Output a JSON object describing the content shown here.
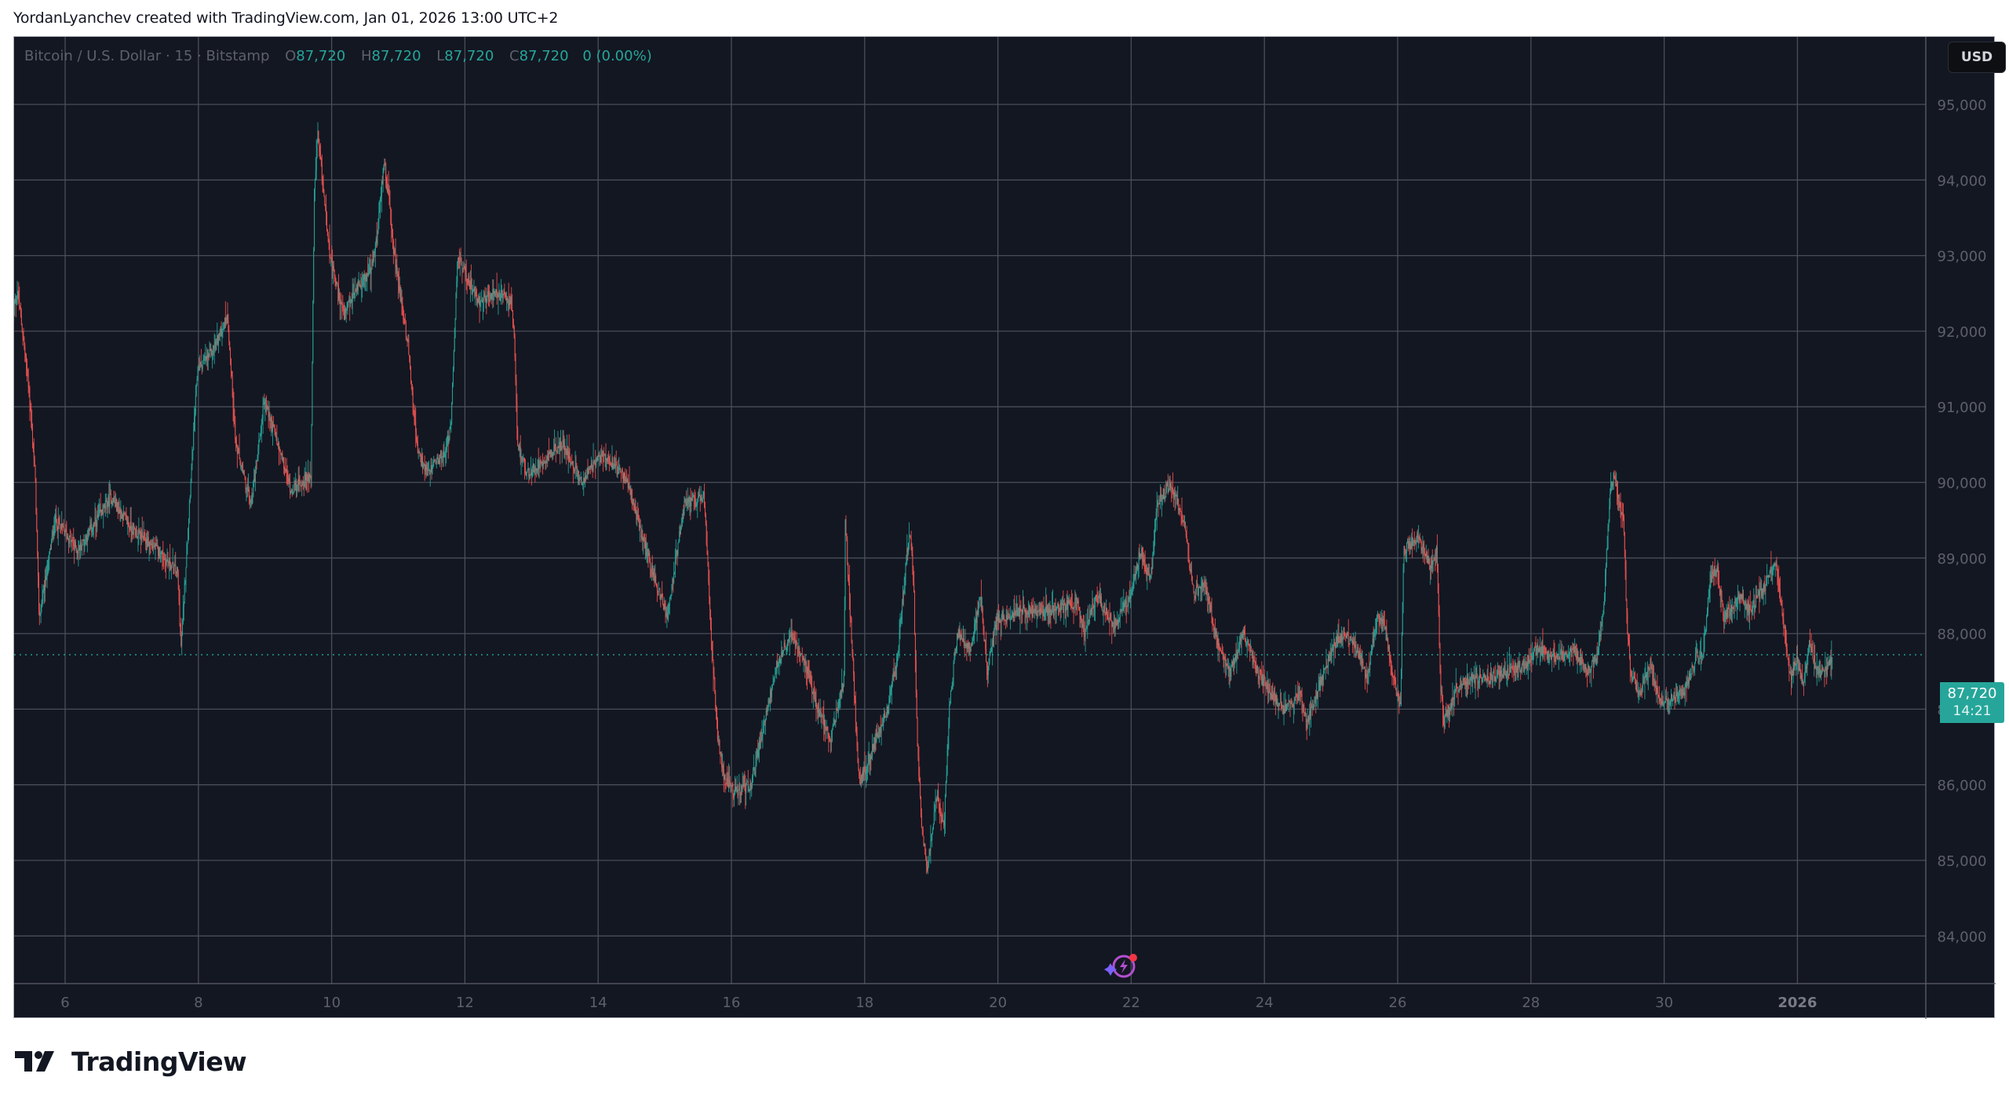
{
  "attribution": "YordanLyanchev created with TradingView.com, Jan 01, 2026 13:00 UTC+2",
  "legend": {
    "symbol_text": "Bitcoin / U.S. Dollar · 15 · Bitstamp",
    "open_label": "O",
    "open_value": "87,720",
    "high_label": "H",
    "high_value": "87,720",
    "low_label": "L",
    "low_value": "87,720",
    "close_label": "C",
    "close_value": "87,720",
    "change_text": "0 (0.00%)"
  },
  "currency_button": "USD",
  "last_price": {
    "price": "87,720",
    "countdown": "14:21"
  },
  "brand": {
    "logo_text": "TradingView"
  },
  "colors": {
    "background": "#131722",
    "grid": "#4a4e59",
    "up": "#26a69a",
    "down": "#ef5350",
    "axis_text": "#5d606b",
    "price_line": "#26a69a"
  },
  "chart_data": {
    "type": "candlestick",
    "title": "Bitcoin / U.S. Dollar · 15 · Bitstamp",
    "interval": "15",
    "exchange": "Bitstamp",
    "xlabel": "",
    "ylabel": "USD",
    "ylim": [
      83400,
      95800
    ],
    "y_ticks": [
      95000,
      94000,
      93000,
      92000,
      91000,
      90000,
      89000,
      88000,
      87000,
      86000,
      85000,
      84000
    ],
    "y_tick_labels": [
      "95,000",
      "94,000",
      "93,000",
      "92,000",
      "91,000",
      "90,000",
      "89,000",
      "88,000",
      "87,000",
      "86,000",
      "85,000",
      "84,000"
    ],
    "x_ticks": [
      6,
      8,
      10,
      12,
      14,
      16,
      18,
      20,
      22,
      24,
      26,
      28,
      30,
      32
    ],
    "x_tick_labels": [
      "6",
      "8",
      "10",
      "12",
      "14",
      "16",
      "18",
      "20",
      "22",
      "24",
      "26",
      "28",
      "30",
      "2026"
    ],
    "grid": true,
    "last_price": 87720,
    "x_unit": "day of Dec 2025 (32 = Jan 1, 2026)",
    "path": [
      [
        5.23,
        92300
      ],
      [
        5.3,
        92500
      ],
      [
        5.45,
        91400
      ],
      [
        5.56,
        90100
      ],
      [
        5.62,
        88200
      ],
      [
        5.86,
        89500
      ],
      [
        6.2,
        89100
      ],
      [
        6.7,
        89800
      ],
      [
        7.0,
        89400
      ],
      [
        7.4,
        89100
      ],
      [
        7.7,
        88800
      ],
      [
        7.75,
        87800
      ],
      [
        7.9,
        90100
      ],
      [
        8.0,
        91500
      ],
      [
        8.2,
        91700
      ],
      [
        8.45,
        92200
      ],
      [
        8.57,
        90500
      ],
      [
        8.8,
        89700
      ],
      [
        9.0,
        91100
      ],
      [
        9.4,
        89900
      ],
      [
        9.7,
        90100
      ],
      [
        9.75,
        93800
      ],
      [
        9.8,
        94600
      ],
      [
        10.0,
        92900
      ],
      [
        10.2,
        92200
      ],
      [
        10.4,
        92600
      ],
      [
        10.6,
        92800
      ],
      [
        10.7,
        93300
      ],
      [
        10.8,
        94300
      ],
      [
        10.95,
        93000
      ],
      [
        11.16,
        91800
      ],
      [
        11.3,
        90400
      ],
      [
        11.45,
        90100
      ],
      [
        11.7,
        90400
      ],
      [
        11.8,
        90700
      ],
      [
        11.9,
        93000
      ],
      [
        12.2,
        92400
      ],
      [
        12.5,
        92500
      ],
      [
        12.7,
        92400
      ],
      [
        12.75,
        91900
      ],
      [
        12.8,
        90500
      ],
      [
        12.95,
        90100
      ],
      [
        13.3,
        90400
      ],
      [
        13.5,
        90500
      ],
      [
        13.75,
        90000
      ],
      [
        14.1,
        90400
      ],
      [
        14.45,
        90000
      ],
      [
        14.6,
        89500
      ],
      [
        14.8,
        88900
      ],
      [
        15.05,
        88200
      ],
      [
        15.3,
        89700
      ],
      [
        15.6,
        89800
      ],
      [
        15.7,
        88100
      ],
      [
        15.8,
        86700
      ],
      [
        15.9,
        86100
      ],
      [
        16.05,
        85900
      ],
      [
        16.3,
        86000
      ],
      [
        16.5,
        86800
      ],
      [
        16.7,
        87600
      ],
      [
        16.9,
        88000
      ],
      [
        17.1,
        87700
      ],
      [
        17.3,
        87000
      ],
      [
        17.5,
        86600
      ],
      [
        17.7,
        87400
      ],
      [
        17.72,
        89500
      ],
      [
        17.87,
        87000
      ],
      [
        17.93,
        86000
      ],
      [
        18.1,
        86400
      ],
      [
        18.35,
        87000
      ],
      [
        18.5,
        87700
      ],
      [
        18.65,
        89100
      ],
      [
        18.7,
        89300
      ],
      [
        18.75,
        88500
      ],
      [
        18.8,
        86600
      ],
      [
        18.86,
        85500
      ],
      [
        18.95,
        84900
      ],
      [
        19.1,
        85900
      ],
      [
        19.2,
        85400
      ],
      [
        19.28,
        87000
      ],
      [
        19.4,
        88000
      ],
      [
        19.6,
        87800
      ],
      [
        19.75,
        88500
      ],
      [
        19.85,
        87500
      ],
      [
        20.0,
        88200
      ],
      [
        20.35,
        88300
      ],
      [
        20.8,
        88300
      ],
      [
        21.2,
        88400
      ],
      [
        21.3,
        88000
      ],
      [
        21.5,
        88500
      ],
      [
        21.75,
        88100
      ],
      [
        22.0,
        88500
      ],
      [
        22.15,
        89100
      ],
      [
        22.3,
        88700
      ],
      [
        22.4,
        89700
      ],
      [
        22.6,
        90000
      ],
      [
        22.8,
        89500
      ],
      [
        22.95,
        88500
      ],
      [
        23.1,
        88700
      ],
      [
        23.3,
        87900
      ],
      [
        23.5,
        87500
      ],
      [
        23.7,
        88000
      ],
      [
        23.85,
        87600
      ],
      [
        24.1,
        87200
      ],
      [
        24.3,
        87000
      ],
      [
        24.55,
        87200
      ],
      [
        24.65,
        86800
      ],
      [
        24.9,
        87500
      ],
      [
        25.1,
        87900
      ],
      [
        25.2,
        88000
      ],
      [
        25.4,
        87800
      ],
      [
        25.55,
        87400
      ],
      [
        25.7,
        88200
      ],
      [
        25.8,
        88200
      ],
      [
        25.95,
        87400
      ],
      [
        26.05,
        87000
      ],
      [
        26.1,
        89100
      ],
      [
        26.3,
        89300
      ],
      [
        26.5,
        88900
      ],
      [
        26.6,
        89100
      ],
      [
        26.65,
        87400
      ],
      [
        26.7,
        86800
      ],
      [
        26.9,
        87300
      ],
      [
        27.1,
        87400
      ],
      [
        27.35,
        87400
      ],
      [
        27.65,
        87500
      ],
      [
        27.95,
        87600
      ],
      [
        28.1,
        87800
      ],
      [
        28.3,
        87700
      ],
      [
        28.55,
        87700
      ],
      [
        28.65,
        87800
      ],
      [
        28.85,
        87500
      ],
      [
        29.0,
        87700
      ],
      [
        29.1,
        88300
      ],
      [
        29.15,
        89100
      ],
      [
        29.2,
        89900
      ],
      [
        29.25,
        90100
      ],
      [
        29.3,
        89900
      ],
      [
        29.4,
        89500
      ],
      [
        29.45,
        88200
      ],
      [
        29.5,
        87500
      ],
      [
        29.65,
        87200
      ],
      [
        29.8,
        87600
      ],
      [
        29.9,
        87200
      ],
      [
        30.0,
        87100
      ],
      [
        30.3,
        87200
      ],
      [
        30.5,
        87700
      ],
      [
        30.6,
        87800
      ],
      [
        30.7,
        88700
      ],
      [
        30.8,
        88900
      ],
      [
        30.9,
        88200
      ],
      [
        31.0,
        88300
      ],
      [
        31.15,
        88500
      ],
      [
        31.3,
        88300
      ],
      [
        31.5,
        88600
      ],
      [
        31.6,
        88800
      ],
      [
        31.7,
        88900
      ],
      [
        31.8,
        88100
      ],
      [
        31.9,
        87400
      ],
      [
        32.0,
        87700
      ],
      [
        32.1,
        87300
      ],
      [
        32.2,
        87900
      ],
      [
        32.3,
        87500
      ],
      [
        32.45,
        87500
      ],
      [
        32.53,
        87720
      ]
    ],
    "notable_extremes": {
      "high": {
        "day": 9.8,
        "price": 94700
      },
      "low": {
        "day": 18.95,
        "price": 84500
      }
    }
  }
}
